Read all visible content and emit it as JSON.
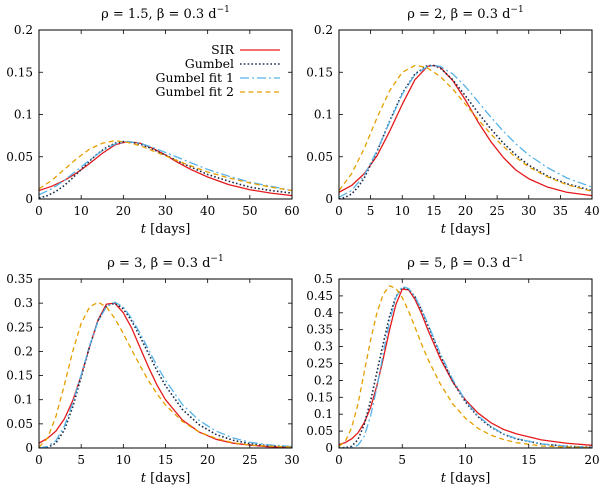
{
  "figure": {
    "description_free": true
  },
  "series_styles": [
    {
      "key": "sir",
      "color": "#e41a1c",
      "dash": ""
    },
    {
      "key": "gum",
      "color": "#1a2b4c",
      "dash": "1.6,2.2"
    },
    {
      "key": "fit1",
      "color": "#56b4e9",
      "dash": "9,3,2,3"
    },
    {
      "key": "fit2",
      "color": "#e69f00",
      "dash": "5,3.5"
    }
  ],
  "chart_data": [
    {
      "type": "line",
      "title": "ρ = 1.5, β = 0.3 d",
      "title_sup": "−1",
      "xlabel_var": "t",
      "xlabel_unit": "[days]",
      "xlim": [
        0,
        60
      ],
      "ylim": [
        0,
        0.2
      ],
      "xticks": [
        0,
        10,
        20,
        30,
        40,
        50,
        60
      ],
      "xtick_labels": [
        "0",
        "10",
        "20",
        "30",
        "40",
        "50",
        "60"
      ],
      "yticks": [
        0,
        0.05,
        0.1,
        0.15,
        0.2
      ],
      "ytick_labels": [
        "0",
        "0.05",
        "0.1",
        "0.15",
        "0.2"
      ],
      "legend": {
        "placement": "top-right",
        "entries": [
          "SIR",
          "Gumbel",
          "Gumbel fit 1",
          "Gumbel fit 2"
        ]
      },
      "series": [
        {
          "name": "SIR",
          "x": [
            0,
            3,
            6,
            9,
            12,
            15,
            18,
            21,
            24,
            27,
            30,
            33,
            36,
            40,
            45,
            50,
            55,
            60
          ],
          "y": [
            0.01,
            0.015,
            0.022,
            0.031,
            0.042,
            0.054,
            0.064,
            0.068,
            0.066,
            0.06,
            0.052,
            0.043,
            0.035,
            0.026,
            0.017,
            0.011,
            0.007,
            0.004
          ]
        },
        {
          "name": "Gumbel",
          "x": [
            0,
            2,
            4,
            6,
            8,
            10,
            12,
            14,
            16,
            18,
            20,
            22,
            24,
            27,
            30,
            35,
            40,
            45,
            50,
            55,
            60
          ],
          "y": [
            0.001,
            0.004,
            0.009,
            0.016,
            0.025,
            0.035,
            0.045,
            0.054,
            0.061,
            0.066,
            0.068,
            0.067,
            0.065,
            0.059,
            0.052,
            0.04,
            0.029,
            0.021,
            0.014,
            0.01,
            0.007
          ]
        },
        {
          "name": "Gumbel fit 1",
          "x": [
            0,
            3,
            6,
            9,
            12,
            15,
            18,
            21,
            24,
            27,
            30,
            35,
            40,
            45,
            50,
            55,
            60
          ],
          "y": [
            0.005,
            0.012,
            0.022,
            0.034,
            0.046,
            0.057,
            0.065,
            0.068,
            0.066,
            0.061,
            0.055,
            0.045,
            0.035,
            0.027,
            0.02,
            0.015,
            0.01
          ]
        },
        {
          "name": "Gumbel fit 2",
          "x": [
            0,
            3,
            6,
            9,
            12,
            15,
            18,
            21,
            24,
            27,
            30,
            35,
            40,
            45,
            50,
            55,
            60
          ],
          "y": [
            0.012,
            0.022,
            0.035,
            0.048,
            0.059,
            0.066,
            0.069,
            0.067,
            0.063,
            0.057,
            0.051,
            0.041,
            0.032,
            0.025,
            0.019,
            0.014,
            0.01
          ]
        }
      ]
    },
    {
      "type": "line",
      "title": "ρ = 2, β = 0.3 d",
      "title_sup": "−1",
      "xlabel_var": "t",
      "xlabel_unit": "[days]",
      "xlim": [
        0,
        40
      ],
      "ylim": [
        0,
        0.2
      ],
      "xticks": [
        0,
        5,
        10,
        15,
        20,
        25,
        30,
        35,
        40
      ],
      "xtick_labels": [
        "0",
        "5",
        "10",
        "15",
        "20",
        "25",
        "30",
        "35",
        "40"
      ],
      "yticks": [
        0,
        0.05,
        0.1,
        0.15,
        0.2
      ],
      "ytick_labels": [
        "0",
        "0.05",
        "0.1",
        "0.15",
        "0.2"
      ],
      "series": [
        {
          "name": "SIR",
          "x": [
            0,
            2,
            4,
            6,
            8,
            10,
            12,
            14,
            15,
            16,
            18,
            20,
            22,
            24,
            26,
            28,
            30,
            33,
            36,
            40
          ],
          "y": [
            0.008,
            0.016,
            0.03,
            0.051,
            0.08,
            0.112,
            0.141,
            0.157,
            0.158,
            0.156,
            0.14,
            0.117,
            0.091,
            0.068,
            0.049,
            0.034,
            0.024,
            0.014,
            0.008,
            0.004
          ]
        },
        {
          "name": "Gumbel",
          "x": [
            0,
            1,
            2,
            3,
            4,
            6,
            8,
            10,
            12,
            14,
            15,
            16,
            18,
            20,
            22,
            24,
            26,
            28,
            30,
            33,
            36,
            40
          ],
          "y": [
            0.0,
            0.002,
            0.006,
            0.014,
            0.025,
            0.056,
            0.092,
            0.125,
            0.148,
            0.158,
            0.158,
            0.155,
            0.141,
            0.122,
            0.102,
            0.083,
            0.066,
            0.052,
            0.04,
            0.027,
            0.018,
            0.01
          ]
        },
        {
          "name": "Gumbel fit 1",
          "x": [
            0,
            2,
            4,
            6,
            8,
            10,
            12,
            14,
            15,
            16,
            18,
            20,
            22,
            24,
            26,
            28,
            30,
            33,
            36,
            40
          ],
          "y": [
            0.002,
            0.01,
            0.028,
            0.057,
            0.091,
            0.124,
            0.147,
            0.157,
            0.158,
            0.157,
            0.148,
            0.133,
            0.115,
            0.097,
            0.08,
            0.065,
            0.052,
            0.037,
            0.025,
            0.014
          ]
        },
        {
          "name": "Gumbel fit 2",
          "x": [
            0,
            2,
            4,
            6,
            8,
            10,
            12,
            13,
            14,
            16,
            18,
            20,
            22,
            24,
            26,
            28,
            30,
            33,
            36,
            40
          ],
          "y": [
            0.01,
            0.03,
            0.06,
            0.096,
            0.128,
            0.15,
            0.158,
            0.157,
            0.155,
            0.145,
            0.13,
            0.112,
            0.094,
            0.077,
            0.062,
            0.049,
            0.038,
            0.026,
            0.017,
            0.009
          ]
        }
      ]
    },
    {
      "type": "line",
      "title": "ρ = 3, β = 0.3 d",
      "title_sup": "−1",
      "xlabel_var": "t",
      "xlabel_unit": "[days]",
      "xlim": [
        0,
        30
      ],
      "ylim": [
        0,
        0.35
      ],
      "xticks": [
        0,
        5,
        10,
        15,
        20,
        25,
        30
      ],
      "xtick_labels": [
        "0",
        "5",
        "10",
        "15",
        "20",
        "25",
        "30"
      ],
      "yticks": [
        0,
        0.05,
        0.1,
        0.15,
        0.2,
        0.25,
        0.3,
        0.35
      ],
      "ytick_labels": [
        "0",
        "0.05",
        "0.1",
        "0.15",
        "0.2",
        "0.25",
        "0.3",
        "0.35"
      ],
      "series": [
        {
          "name": "SIR",
          "x": [
            0,
            1,
            2,
            3,
            4,
            5,
            6,
            7,
            8,
            9,
            10,
            11,
            12,
            13,
            14,
            15,
            17,
            19,
            21,
            23,
            25,
            27,
            30
          ],
          "y": [
            0.01,
            0.02,
            0.035,
            0.06,
            0.098,
            0.15,
            0.21,
            0.265,
            0.298,
            0.3,
            0.28,
            0.248,
            0.207,
            0.167,
            0.13,
            0.1,
            0.058,
            0.033,
            0.018,
            0.01,
            0.006,
            0.003,
            0.001
          ]
        },
        {
          "name": "Gumbel",
          "x": [
            0,
            1,
            2,
            3,
            4,
            5,
            6,
            7,
            8,
            9,
            10,
            11,
            12,
            13,
            14,
            15,
            17,
            19,
            21,
            23,
            25,
            27,
            30
          ],
          "y": [
            0.0,
            0.001,
            0.01,
            0.037,
            0.085,
            0.147,
            0.21,
            0.264,
            0.294,
            0.3,
            0.288,
            0.263,
            0.23,
            0.195,
            0.16,
            0.129,
            0.08,
            0.048,
            0.028,
            0.016,
            0.009,
            0.005,
            0.002
          ]
        },
        {
          "name": "Gumbel fit 1",
          "x": [
            0,
            1,
            2,
            3,
            4,
            5,
            6,
            7,
            8,
            9,
            10,
            11,
            12,
            13,
            14,
            15,
            17,
            19,
            21,
            23,
            25,
            27,
            30
          ],
          "y": [
            0.0,
            0.003,
            0.015,
            0.045,
            0.093,
            0.152,
            0.212,
            0.262,
            0.293,
            0.302,
            0.292,
            0.268,
            0.237,
            0.203,
            0.17,
            0.14,
            0.09,
            0.057,
            0.035,
            0.021,
            0.012,
            0.007,
            0.003
          ]
        },
        {
          "name": "Gumbel fit 2",
          "x": [
            0,
            1,
            2,
            3,
            4,
            5,
            6,
            7,
            8,
            9,
            10,
            11,
            12,
            13,
            14,
            15,
            17,
            19,
            21,
            23,
            25,
            27,
            30
          ],
          "y": [
            0.002,
            0.02,
            0.065,
            0.13,
            0.2,
            0.258,
            0.292,
            0.302,
            0.292,
            0.268,
            0.237,
            0.203,
            0.17,
            0.139,
            0.112,
            0.089,
            0.055,
            0.033,
            0.02,
            0.011,
            0.006,
            0.004,
            0.002
          ]
        }
      ]
    },
    {
      "type": "line",
      "title": "ρ = 5, β = 0.3 d",
      "title_sup": "−1",
      "xlabel_var": "t",
      "xlabel_unit": "[days]",
      "xlim": [
        0,
        20
      ],
      "ylim": [
        0,
        0.5
      ],
      "xticks": [
        0,
        5,
        10,
        15,
        20
      ],
      "xtick_labels": [
        "0",
        "5",
        "10",
        "15",
        "20"
      ],
      "yticks": [
        0,
        0.05,
        0.1,
        0.15,
        0.2,
        0.25,
        0.3,
        0.35,
        0.4,
        0.45,
        0.5
      ],
      "ytick_labels": [
        "0",
        "0.05",
        "0.1",
        "0.15",
        "0.2",
        "0.25",
        "0.3",
        "0.35",
        "0.4",
        "0.45",
        "0.5"
      ],
      "series": [
        {
          "name": "SIR",
          "x": [
            0,
            0.5,
            1,
            1.5,
            2,
            2.5,
            3,
            3.5,
            4,
            4.5,
            5,
            5.5,
            6,
            6.5,
            7,
            8,
            9,
            10,
            11,
            12,
            13,
            14,
            16,
            18,
            20
          ],
          "y": [
            0.01,
            0.016,
            0.027,
            0.045,
            0.075,
            0.12,
            0.185,
            0.265,
            0.35,
            0.425,
            0.47,
            0.468,
            0.44,
            0.4,
            0.352,
            0.265,
            0.195,
            0.142,
            0.103,
            0.075,
            0.055,
            0.042,
            0.024,
            0.014,
            0.008
          ]
        },
        {
          "name": "Gumbel",
          "x": [
            0,
            0.5,
            1,
            1.5,
            2,
            2.5,
            3,
            3.5,
            4,
            4.5,
            5,
            5.5,
            6,
            6.5,
            7,
            8,
            9,
            10,
            11,
            12,
            13,
            14,
            16,
            18,
            20
          ],
          "y": [
            0.0,
            0.001,
            0.005,
            0.025,
            0.07,
            0.14,
            0.225,
            0.31,
            0.39,
            0.448,
            0.475,
            0.47,
            0.448,
            0.41,
            0.366,
            0.275,
            0.196,
            0.136,
            0.092,
            0.062,
            0.041,
            0.027,
            0.012,
            0.005,
            0.002
          ]
        },
        {
          "name": "Gumbel fit 1",
          "x": [
            0,
            0.5,
            1,
            1.5,
            2,
            2.5,
            3,
            3.5,
            4,
            4.5,
            5,
            5.5,
            6,
            6.5,
            7,
            8,
            9,
            10,
            11,
            12,
            13,
            14,
            16,
            18,
            20
          ],
          "y": [
            0.0,
            0.0,
            0.001,
            0.008,
            0.035,
            0.095,
            0.18,
            0.28,
            0.375,
            0.445,
            0.478,
            0.472,
            0.448,
            0.412,
            0.37,
            0.28,
            0.202,
            0.14,
            0.095,
            0.064,
            0.042,
            0.028,
            0.012,
            0.005,
            0.002
          ]
        },
        {
          "name": "Gumbel fit 2",
          "x": [
            0,
            0.5,
            1,
            1.5,
            2,
            2.5,
            3,
            3.5,
            4,
            4.5,
            5,
            5.5,
            6,
            6.5,
            7,
            8,
            9,
            10,
            11,
            12,
            13,
            14,
            16,
            18,
            20
          ],
          "y": [
            0.005,
            0.02,
            0.06,
            0.13,
            0.225,
            0.32,
            0.4,
            0.455,
            0.48,
            0.472,
            0.445,
            0.405,
            0.358,
            0.31,
            0.265,
            0.19,
            0.13,
            0.088,
            0.058,
            0.038,
            0.025,
            0.016,
            0.006,
            0.003,
            0.001
          ]
        }
      ]
    }
  ]
}
